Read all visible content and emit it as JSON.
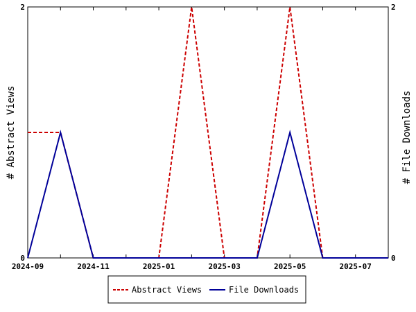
{
  "chart_data": {
    "type": "line",
    "x": [
      "2024-09",
      "2024-10",
      "2024-11",
      "2024-12",
      "2025-01",
      "2025-02",
      "2025-03",
      "2025-04",
      "2025-05",
      "2025-06",
      "2025-07",
      "2025-08"
    ],
    "x_ticks": [
      "2024-09",
      "2024-11",
      "2025-01",
      "2025-03",
      "2025-05",
      "2025-07"
    ],
    "series": [
      {
        "name": "Abstract Views",
        "axis": "left",
        "color": "#cc0000",
        "style": "dashed",
        "values": [
          1,
          1,
          0,
          0,
          0,
          2,
          0,
          0,
          2,
          0,
          0,
          0
        ]
      },
      {
        "name": "File Downloads",
        "axis": "right",
        "color": "#000099",
        "style": "solid",
        "values": [
          0,
          1,
          0,
          0,
          0,
          0,
          0,
          0,
          1,
          0,
          0,
          0
        ]
      }
    ],
    "ylabel": "# Abstract Views",
    "ylabel_right": "# File Downloads",
    "ylim": [
      0,
      2
    ],
    "ylim_right": [
      0,
      2
    ],
    "y_ticks": [
      "0",
      "2"
    ],
    "y_ticks_right": [
      "0",
      "2"
    ],
    "grid": false,
    "legend_position": "bottom"
  }
}
